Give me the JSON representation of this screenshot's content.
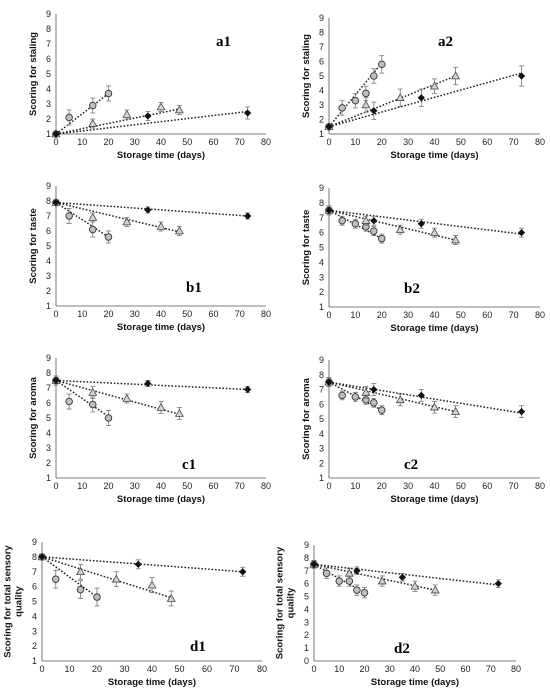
{
  "chart_data": [
    {
      "type": "scatter",
      "label": "a1",
      "xlabel": "Storage time (days)",
      "ylabel": [
        "Scoring for staling"
      ],
      "xlim": [
        0,
        80
      ],
      "ylim": [
        1,
        9
      ],
      "xticks": [
        0,
        10,
        20,
        30,
        40,
        50,
        60,
        70,
        80
      ],
      "yticks": [
        1,
        2,
        3,
        4,
        5,
        6,
        7,
        8,
        9
      ],
      "series": [
        {
          "marker": "circle",
          "x": [
            0,
            5,
            14,
            20
          ],
          "y": [
            1.0,
            2.1,
            2.9,
            3.7
          ],
          "err": [
            0.1,
            0.5,
            0.5,
            0.5
          ],
          "fit": [
            [
              0,
              1.0
            ],
            [
              20,
              3.7
            ]
          ]
        },
        {
          "marker": "triangle",
          "x": [
            0,
            14,
            27,
            40,
            47
          ],
          "y": [
            1.0,
            1.7,
            2.3,
            2.8,
            2.6
          ],
          "err": [
            0.1,
            0.3,
            0.3,
            0.3,
            0.3
          ],
          "fit": [
            [
              0,
              1.0
            ],
            [
              48,
              2.7
            ]
          ]
        },
        {
          "marker": "diamond",
          "x": [
            0,
            35,
            73
          ],
          "y": [
            1.0,
            2.2,
            2.4
          ],
          "err": [
            0.1,
            0.3,
            0.4
          ],
          "fit": [
            [
              0,
              1.0
            ],
            [
              73,
              2.5
            ]
          ]
        }
      ]
    },
    {
      "type": "scatter",
      "label": "a2",
      "xlabel": "Storage time (days)",
      "ylabel": [
        "Scoring for staling"
      ],
      "xlim": [
        0,
        80
      ],
      "ylim": [
        1,
        9
      ],
      "xticks": [
        0,
        10,
        20,
        30,
        40,
        50,
        60,
        70,
        80
      ],
      "yticks": [
        1,
        2,
        3,
        4,
        5,
        6,
        7,
        8,
        9
      ],
      "series": [
        {
          "marker": "circle",
          "x": [
            0,
            5,
            10,
            14,
            17,
            20
          ],
          "y": [
            1.5,
            2.8,
            3.3,
            3.8,
            5.0,
            5.8
          ],
          "err": [
            0.2,
            0.5,
            0.5,
            0.5,
            0.5,
            0.6
          ],
          "fit": [
            [
              0,
              1.5
            ],
            [
              20,
              5.9
            ]
          ]
        },
        {
          "marker": "triangle",
          "x": [
            0,
            14,
            27,
            40,
            48
          ],
          "y": [
            1.5,
            3.0,
            3.5,
            4.3,
            5.0
          ],
          "err": [
            0.2,
            0.5,
            0.6,
            0.5,
            0.6
          ],
          "fit": [
            [
              0,
              1.5
            ],
            [
              48,
              5.0
            ]
          ]
        },
        {
          "marker": "diamond",
          "x": [
            0,
            17,
            35,
            73
          ],
          "y": [
            1.5,
            2.6,
            3.5,
            5.0
          ],
          "err": [
            0.2,
            0.6,
            0.6,
            0.7
          ],
          "fit": [
            [
              0,
              1.5
            ],
            [
              73,
              5.2
            ]
          ]
        }
      ]
    },
    {
      "type": "scatter",
      "label": "b1",
      "xlabel": "Storage time (days)",
      "ylabel": [
        "Scoring for taste"
      ],
      "xlim": [
        0,
        80
      ],
      "ylim": [
        1,
        9
      ],
      "xticks": [
        0,
        10,
        20,
        30,
        40,
        50,
        60,
        70,
        80
      ],
      "yticks": [
        1,
        2,
        3,
        4,
        5,
        6,
        7,
        8,
        9
      ],
      "series": [
        {
          "marker": "circle",
          "x": [
            0,
            5,
            14,
            20
          ],
          "y": [
            7.9,
            7.0,
            6.1,
            5.6
          ],
          "err": [
            0.2,
            0.5,
            0.5,
            0.4
          ],
          "fit": [
            [
              0,
              7.9
            ],
            [
              20,
              5.6
            ]
          ]
        },
        {
          "marker": "triangle",
          "x": [
            0,
            14,
            27,
            40,
            47
          ],
          "y": [
            7.9,
            6.9,
            6.6,
            6.3,
            6.0
          ],
          "err": [
            0.2,
            0.3,
            0.3,
            0.3,
            0.3
          ],
          "fit": [
            [
              0,
              7.9
            ],
            [
              48,
              5.9
            ]
          ]
        },
        {
          "marker": "diamond",
          "x": [
            0,
            35,
            73
          ],
          "y": [
            7.9,
            7.4,
            7.0
          ],
          "err": [
            0.2,
            0.2,
            0.2
          ],
          "fit": [
            [
              0,
              7.9
            ],
            [
              73,
              7.0
            ]
          ]
        }
      ]
    },
    {
      "type": "scatter",
      "label": "b2",
      "xlabel": "Storage time (days)",
      "ylabel": [
        "Scoring for taste"
      ],
      "xlim": [
        0,
        80
      ],
      "ylim": [
        1,
        9
      ],
      "xticks": [
        0,
        10,
        20,
        30,
        40,
        50,
        60,
        70,
        80
      ],
      "yticks": [
        1,
        2,
        3,
        4,
        5,
        6,
        7,
        8,
        9
      ],
      "series": [
        {
          "marker": "circle",
          "x": [
            0,
            5,
            10,
            14,
            17,
            20
          ],
          "y": [
            7.5,
            6.8,
            6.6,
            6.4,
            6.1,
            5.6
          ],
          "err": [
            0.3,
            0.3,
            0.3,
            0.3,
            0.3,
            0.3
          ],
          "fit": [
            [
              0,
              7.5
            ],
            [
              20,
              5.6
            ]
          ]
        },
        {
          "marker": "triangle",
          "x": [
            0,
            14,
            27,
            40,
            48
          ],
          "y": [
            7.5,
            6.8,
            6.2,
            6.0,
            5.5
          ],
          "err": [
            0.3,
            0.3,
            0.3,
            0.3,
            0.3
          ],
          "fit": [
            [
              0,
              7.5
            ],
            [
              48,
              5.5
            ]
          ]
        },
        {
          "marker": "diamond",
          "x": [
            0,
            17,
            35,
            73
          ],
          "y": [
            7.5,
            6.8,
            6.6,
            6.0
          ],
          "err": [
            0.3,
            0.3,
            0.3,
            0.3
          ],
          "fit": [
            [
              0,
              7.5
            ],
            [
              73,
              5.9
            ]
          ]
        }
      ]
    },
    {
      "type": "scatter",
      "label": "c1",
      "xlabel": "Storage time (days)",
      "ylabel": [
        "Scoring for aroma"
      ],
      "xlim": [
        0,
        80
      ],
      "ylim": [
        1,
        9
      ],
      "xticks": [
        0,
        10,
        20,
        30,
        40,
        50,
        60,
        70,
        80
      ],
      "yticks": [
        1,
        2,
        3,
        4,
        5,
        6,
        7,
        8,
        9
      ],
      "series": [
        {
          "marker": "circle",
          "x": [
            0,
            5,
            14,
            20
          ],
          "y": [
            7.5,
            6.1,
            5.9,
            5.0
          ],
          "err": [
            0.3,
            0.5,
            0.5,
            0.5
          ],
          "fit": [
            [
              0,
              7.5
            ],
            [
              20,
              5.1
            ]
          ]
        },
        {
          "marker": "triangle",
          "x": [
            0,
            14,
            27,
            40,
            47
          ],
          "y": [
            7.5,
            6.7,
            6.3,
            5.7,
            5.3
          ],
          "err": [
            0.3,
            0.4,
            0.3,
            0.4,
            0.4
          ],
          "fit": [
            [
              0,
              7.5
            ],
            [
              48,
              5.2
            ]
          ]
        },
        {
          "marker": "diamond",
          "x": [
            0,
            35,
            73
          ],
          "y": [
            7.5,
            7.3,
            6.9
          ],
          "err": [
            0.3,
            0.2,
            0.2
          ],
          "fit": [
            [
              0,
              7.5
            ],
            [
              73,
              6.9
            ]
          ]
        }
      ]
    },
    {
      "type": "scatter",
      "label": "c2",
      "xlabel": "Storage time (days)",
      "ylabel": [
        "Scoring for aroma"
      ],
      "xlim": [
        0,
        80
      ],
      "ylim": [
        1,
        9
      ],
      "xticks": [
        0,
        10,
        20,
        30,
        40,
        50,
        60,
        70,
        80
      ],
      "yticks": [
        1,
        2,
        3,
        4,
        5,
        6,
        7,
        8,
        9
      ],
      "series": [
        {
          "marker": "circle",
          "x": [
            0,
            5,
            10,
            14,
            17,
            20
          ],
          "y": [
            7.5,
            6.6,
            6.5,
            6.3,
            6.1,
            5.6
          ],
          "err": [
            0.3,
            0.3,
            0.3,
            0.3,
            0.3,
            0.3
          ],
          "fit": [
            [
              0,
              7.5
            ],
            [
              20,
              5.6
            ]
          ]
        },
        {
          "marker": "triangle",
          "x": [
            0,
            14,
            27,
            40,
            48
          ],
          "y": [
            7.5,
            6.8,
            6.3,
            5.8,
            5.5
          ],
          "err": [
            0.3,
            0.4,
            0.4,
            0.4,
            0.4
          ],
          "fit": [
            [
              0,
              7.5
            ],
            [
              48,
              5.5
            ]
          ]
        },
        {
          "marker": "diamond",
          "x": [
            0,
            17,
            35,
            73
          ],
          "y": [
            7.5,
            7.0,
            6.6,
            5.5
          ],
          "err": [
            0.3,
            0.4,
            0.4,
            0.4
          ],
          "fit": [
            [
              0,
              7.5
            ],
            [
              73,
              5.4
            ]
          ]
        }
      ]
    },
    {
      "type": "scatter",
      "label": "d1",
      "xlabel": "Storage time (days)",
      "ylabel": [
        "Scoring for total sensory",
        "quality"
      ],
      "xlim": [
        0,
        80
      ],
      "ylim": [
        1,
        9
      ],
      "xticks": [
        0,
        10,
        20,
        30,
        40,
        50,
        60,
        70,
        80
      ],
      "yticks": [
        1,
        2,
        3,
        4,
        5,
        6,
        7,
        8,
        9
      ],
      "series": [
        {
          "marker": "circle",
          "x": [
            0,
            5,
            14,
            20
          ],
          "y": [
            8.0,
            6.5,
            5.8,
            5.3
          ],
          "err": [
            0.2,
            0.6,
            0.6,
            0.6
          ],
          "fit": [
            [
              0,
              8.0
            ],
            [
              20,
              5.3
            ]
          ]
        },
        {
          "marker": "triangle",
          "x": [
            0,
            14,
            27,
            40,
            47
          ],
          "y": [
            8.0,
            7.0,
            6.5,
            6.1,
            5.2
          ],
          "err": [
            0.2,
            0.5,
            0.5,
            0.5,
            0.5
          ],
          "fit": [
            [
              0,
              8.0
            ],
            [
              48,
              5.2
            ]
          ]
        },
        {
          "marker": "diamond",
          "x": [
            0,
            35,
            73
          ],
          "y": [
            8.0,
            7.5,
            7.0
          ],
          "err": [
            0.2,
            0.3,
            0.3
          ],
          "fit": [
            [
              0,
              8.0
            ],
            [
              73,
              7.0
            ]
          ]
        }
      ]
    },
    {
      "type": "scatter",
      "label": "d2",
      "xlabel": "Storage time (days)",
      "ylabel": [
        "Scoring for total sensory",
        "quality"
      ],
      "xlim": [
        0,
        80
      ],
      "ylim": [
        0,
        9
      ],
      "xticks": [
        0,
        10,
        20,
        30,
        40,
        50,
        60,
        70,
        80
      ],
      "yticks": [
        0,
        1,
        2,
        3,
        4,
        5,
        6,
        7,
        8,
        9
      ],
      "series": [
        {
          "marker": "circle",
          "x": [
            0,
            5,
            10,
            14,
            17,
            20
          ],
          "y": [
            7.5,
            6.8,
            6.2,
            6.2,
            5.5,
            5.3
          ],
          "err": [
            0.3,
            0.4,
            0.4,
            0.4,
            0.4,
            0.4
          ],
          "fit": [
            [
              0,
              7.5
            ],
            [
              20,
              5.3
            ]
          ]
        },
        {
          "marker": "triangle",
          "x": [
            0,
            14,
            27,
            40,
            48
          ],
          "y": [
            7.5,
            6.8,
            6.2,
            5.8,
            5.5
          ],
          "err": [
            0.3,
            0.4,
            0.4,
            0.4,
            0.4
          ],
          "fit": [
            [
              0,
              7.5
            ],
            [
              48,
              5.5
            ]
          ]
        },
        {
          "marker": "diamond",
          "x": [
            0,
            17,
            35,
            73
          ],
          "y": [
            7.5,
            7.0,
            6.5,
            6.0
          ],
          "err": [
            0.3,
            0.3,
            0.3,
            0.3
          ],
          "fit": [
            [
              0,
              7.5
            ],
            [
              73,
              5.9
            ]
          ]
        }
      ]
    }
  ]
}
